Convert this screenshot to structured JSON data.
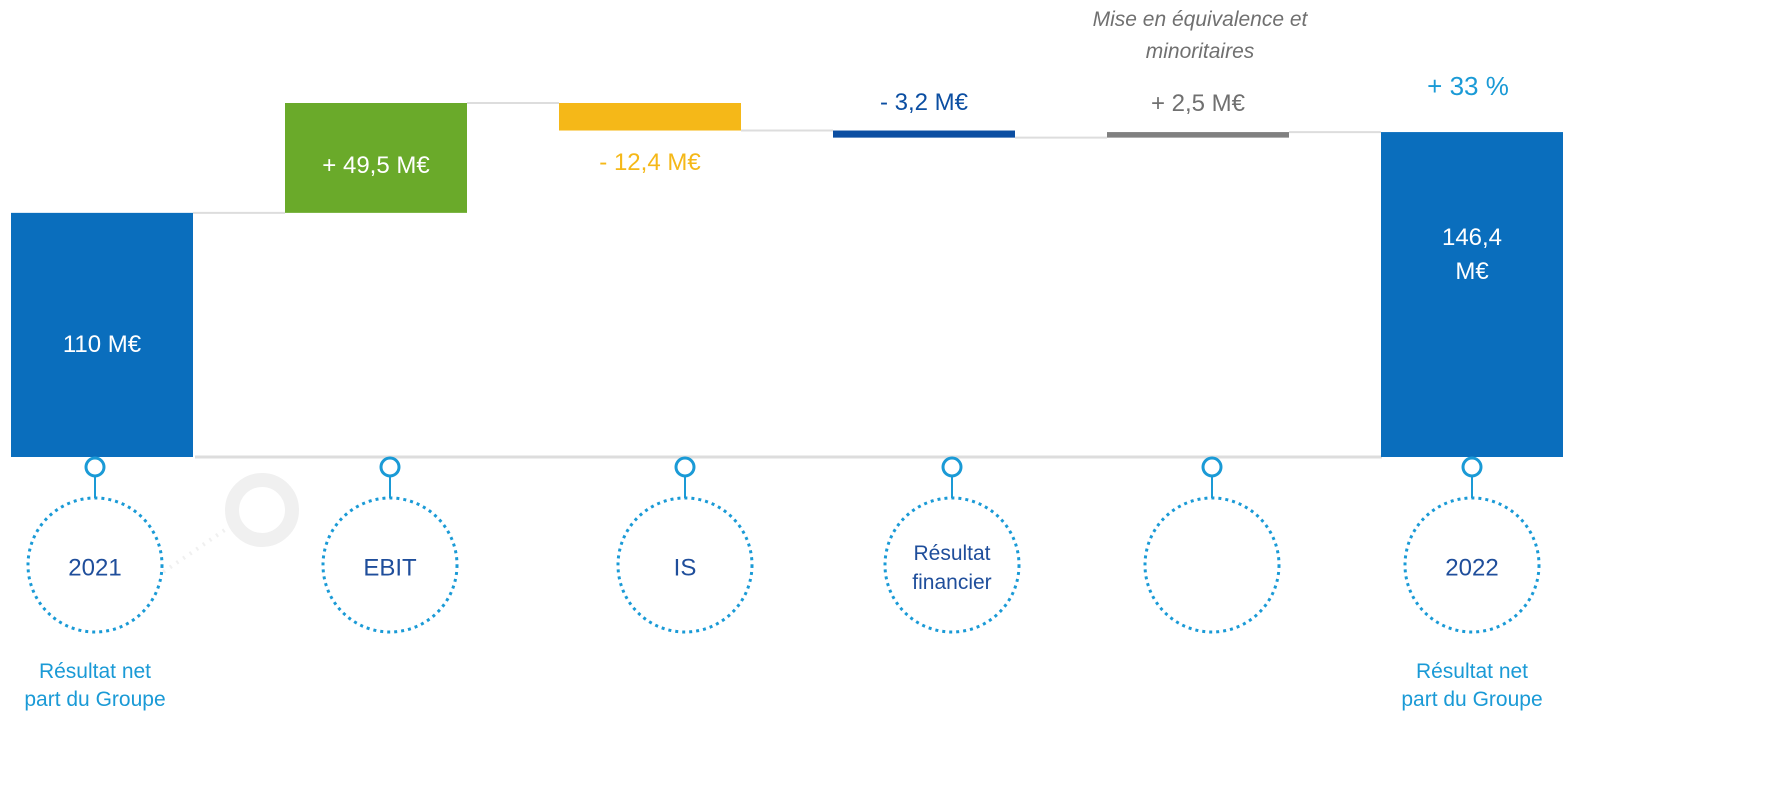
{
  "chart_data": {
    "type": "waterfall",
    "categories": [
      "2021",
      "EBIT",
      "IS",
      "Résultat financier",
      null,
      "2022"
    ],
    "values": [
      110,
      49.5,
      -12.4,
      -3.2,
      2.5,
      146.4
    ],
    "value_labels": [
      "110 M€",
      "+ 49,5 M€",
      "- 12,4 M€",
      "- 3,2 M€",
      "+ 2,5 M€",
      "146,4 M€"
    ],
    "totals": [
      true,
      false,
      false,
      false,
      false,
      true
    ],
    "colors": [
      "#0a6ebd",
      "#6aaa2a",
      "#f5b818",
      "#0b4ea2",
      "#808080",
      "#0a6ebd"
    ],
    "annotations": [
      "Mise en équivalence et minoritaires",
      "+ 33 %"
    ],
    "subtitles": [
      "Résultat net part du Groupe",
      "Résultat net part du Groupe"
    ]
  }
}
